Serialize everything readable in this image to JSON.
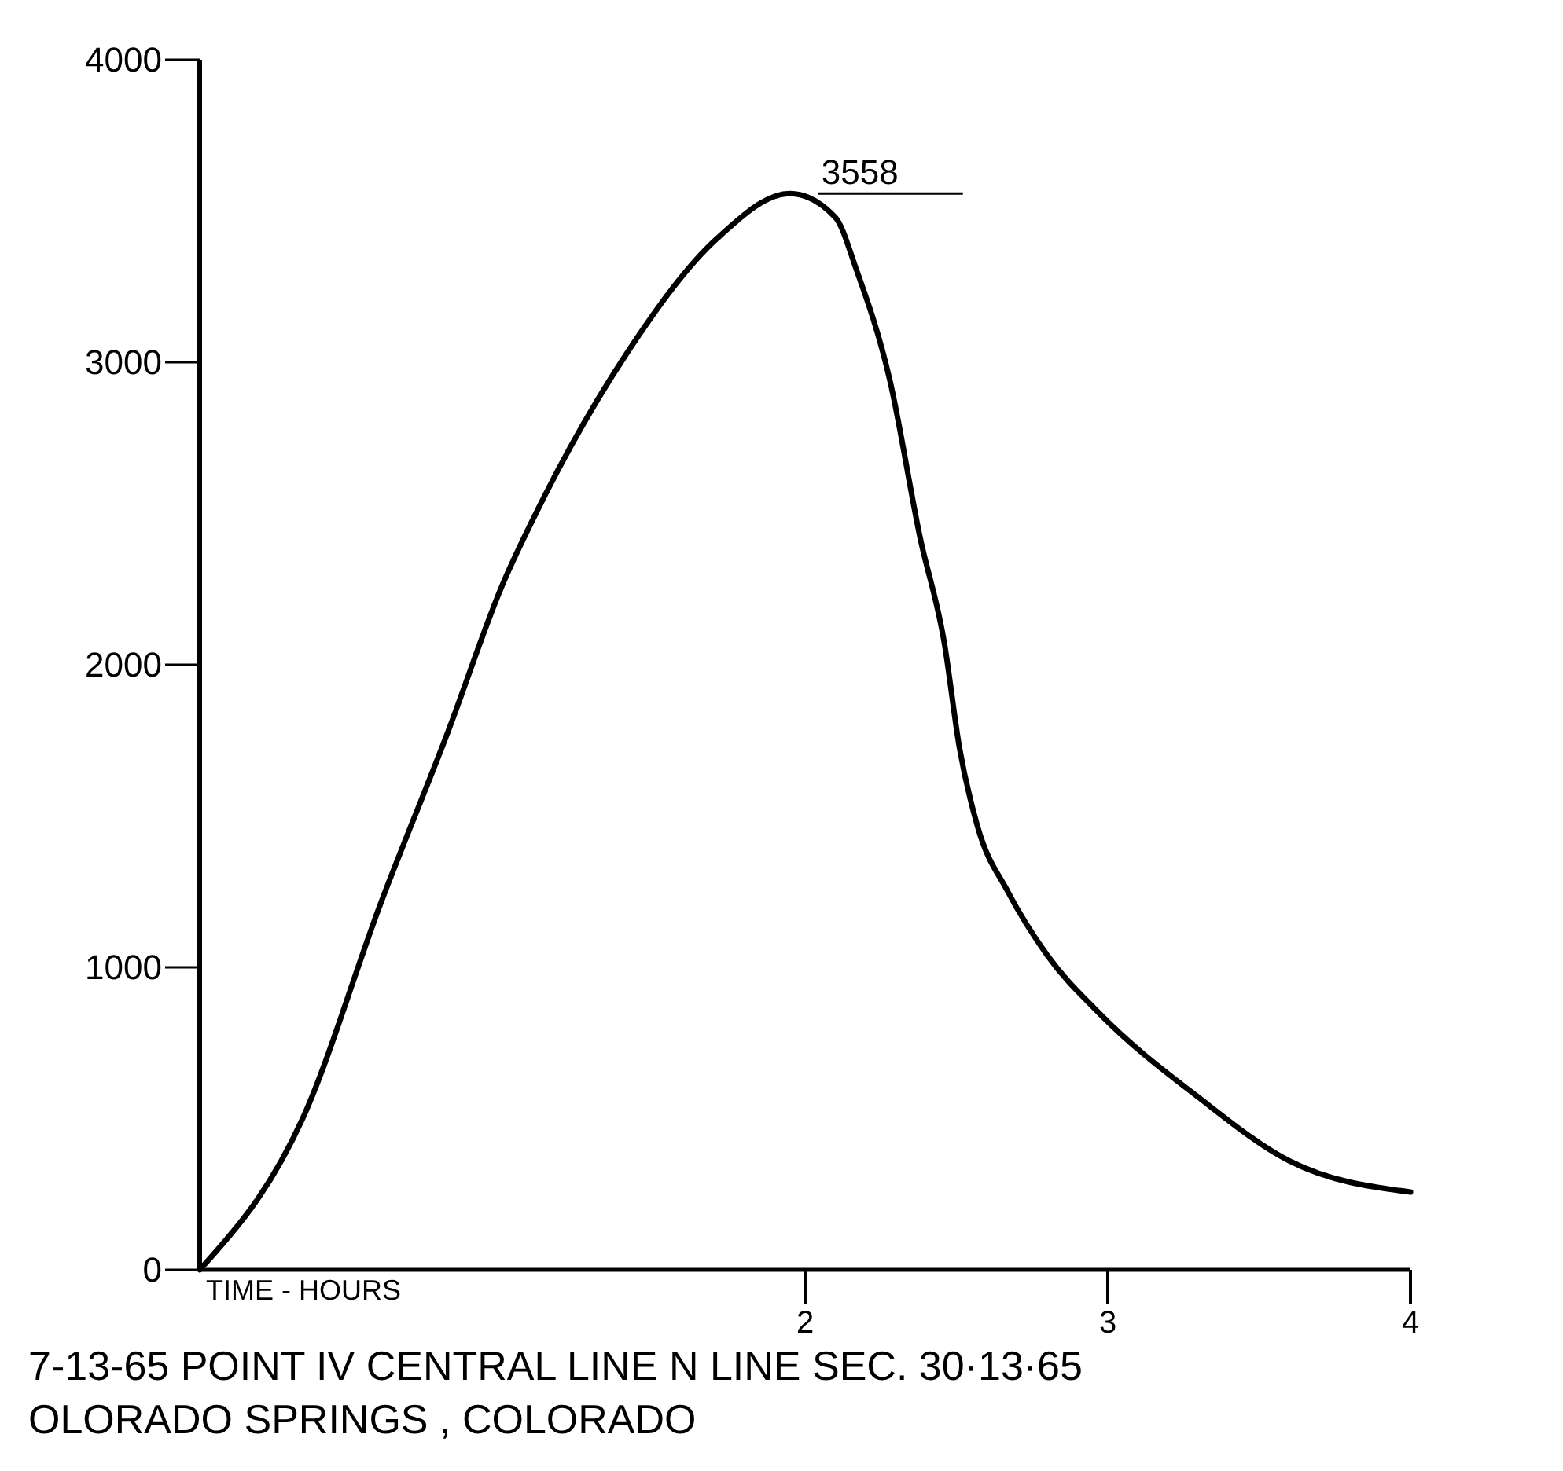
{
  "chart_data": {
    "type": "line",
    "title": "7-13-65   POINT IV   CENTRAL LINE  N LINE  SEC. 30·13·65",
    "subtitle": "OLORADO   SPRINGS ,  COLORADO",
    "xlabel": "TIME - HOURS",
    "x": [
      0,
      0.34,
      0.6,
      0.82,
      1.0,
      1.14,
      1.41,
      1.71,
      1.95,
      2.1,
      2.17,
      2.28,
      2.38,
      2.46,
      2.51,
      2.57,
      2.67,
      2.8,
      2.97,
      3.3,
      3.6,
      4.0
    ],
    "series": [
      {
        "color": "#000000",
        "values": [
          0,
          500,
          1217,
          1778,
          2264,
          2559,
          3028,
          3410,
          3558,
          3479,
          3305,
          2941,
          2420,
          2072,
          1726,
          1465,
          1250,
          1040,
          850,
          570,
          360,
          257
        ]
      }
    ],
    "xlim": [
      0,
      4
    ],
    "xticks": [
      2,
      3,
      4
    ],
    "ylim": [
      0,
      4000
    ],
    "yticks": [
      0,
      1000,
      2000,
      3000,
      4000
    ],
    "annotations": [
      {
        "text": "3558",
        "x": 1.95,
        "y": 3558
      }
    ],
    "grid": false,
    "marker": "none",
    "line_style": "solid"
  }
}
